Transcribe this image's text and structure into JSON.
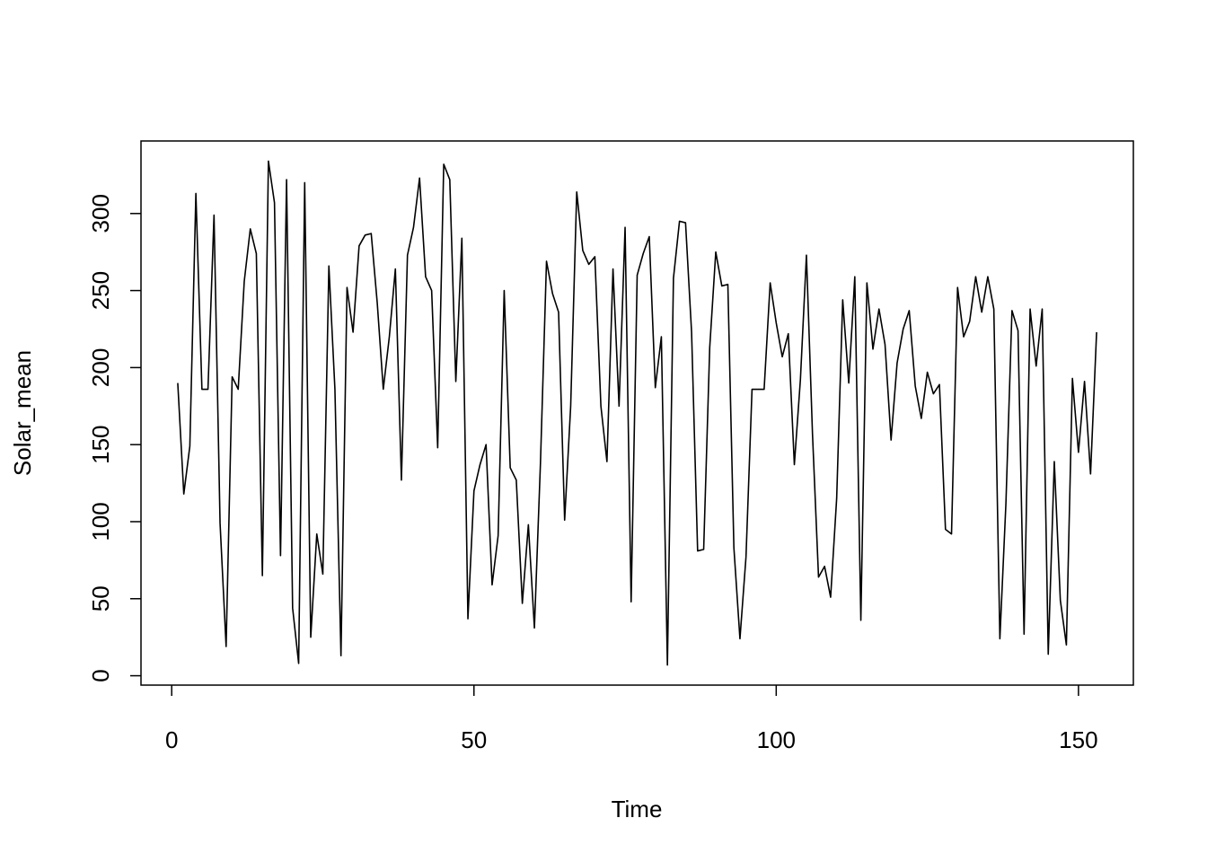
{
  "chart_data": {
    "type": "line",
    "xlabel": "Time",
    "ylabel": "Solar_mean",
    "x": [
      1,
      2,
      3,
      4,
      5,
      6,
      7,
      8,
      9,
      10,
      11,
      12,
      13,
      14,
      15,
      16,
      17,
      18,
      19,
      20,
      21,
      22,
      23,
      24,
      25,
      26,
      27,
      28,
      29,
      30,
      31,
      32,
      33,
      34,
      35,
      36,
      37,
      38,
      39,
      40,
      41,
      42,
      43,
      44,
      45,
      46,
      47,
      48,
      49,
      50,
      51,
      52,
      53,
      54,
      55,
      56,
      57,
      58,
      59,
      60,
      61,
      62,
      63,
      64,
      65,
      66,
      67,
      68,
      69,
      70,
      71,
      72,
      73,
      74,
      75,
      76,
      77,
      78,
      79,
      80,
      81,
      82,
      83,
      84,
      85,
      86,
      87,
      88,
      89,
      90,
      91,
      92,
      93,
      94,
      95,
      96,
      97,
      98,
      99,
      100,
      101,
      102,
      103,
      104,
      105,
      106,
      107,
      108,
      109,
      110,
      111,
      112,
      113,
      114,
      115,
      116,
      117,
      118,
      119,
      120,
      121,
      122,
      123,
      124,
      125,
      126,
      127,
      128,
      129,
      130,
      131,
      132,
      133,
      134,
      135,
      136,
      137,
      138,
      139,
      140,
      141,
      142,
      143,
      144,
      145,
      146,
      147,
      148,
      149,
      150,
      151,
      152,
      153
    ],
    "series": [
      {
        "color": "#000000",
        "values": [
          190,
          118,
          149,
          313,
          185.93,
          185.93,
          299,
          99,
          19,
          194,
          185.93,
          256,
          290,
          274,
          65,
          334,
          307,
          78,
          322,
          44,
          8,
          320,
          25,
          92,
          66,
          266,
          185.93,
          13,
          252,
          223,
          279,
          286,
          287,
          242,
          186,
          220,
          264,
          127,
          273,
          291,
          323,
          259,
          250,
          148,
          332,
          322,
          191,
          284,
          37,
          120,
          137,
          150,
          59,
          91,
          250,
          135,
          127,
          47,
          98,
          31,
          138,
          269,
          248,
          236,
          101,
          175,
          314,
          276,
          267,
          272,
          175,
          139,
          264,
          175,
          291,
          48,
          260,
          274,
          285,
          187,
          220,
          7,
          258,
          295,
          294,
          223,
          81,
          82,
          213,
          275,
          253,
          254,
          83,
          24,
          77,
          185.93,
          185.93,
          185.93,
          255,
          229,
          207,
          222,
          137,
          192,
          273,
          157,
          64,
          71,
          51,
          115,
          244,
          190,
          259,
          36,
          255,
          212,
          238,
          215,
          153,
          203,
          225,
          237,
          188,
          167,
          197,
          183,
          189,
          95,
          92,
          252,
          220,
          230,
          259,
          236,
          259,
          238,
          24,
          112,
          237,
          224,
          27,
          238,
          201,
          238,
          14,
          139,
          49,
          20,
          193,
          145,
          191,
          131,
          223
        ]
      }
    ],
    "xlim": [
      -5.08,
      159.08
    ],
    "ylim": [
      -6.08,
      347.08
    ],
    "xticks": [
      0,
      50,
      100,
      150
    ],
    "yticks": [
      0,
      50,
      100,
      150,
      200,
      250,
      300
    ]
  }
}
